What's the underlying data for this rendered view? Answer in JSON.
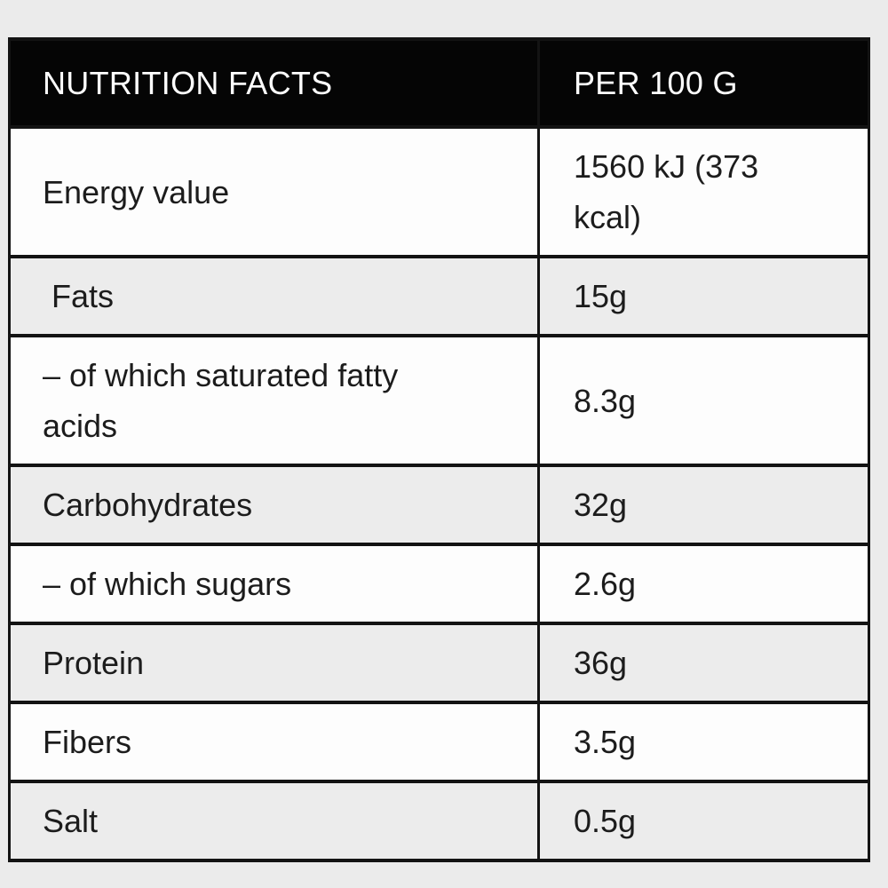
{
  "table": {
    "header": {
      "label": "NUTRITION FACTS",
      "value": "PER 100 G"
    },
    "rows": [
      {
        "label": "Energy value",
        "value": "1560 kJ (373 kcal)"
      },
      {
        "label": " Fats",
        "value": "15g"
      },
      {
        "label": "– of which saturated fatty acids",
        "value": "8.3g"
      },
      {
        "label": "Carbohydrates",
        "value": "32g"
      },
      {
        "label": "– of which sugars",
        "value": "2.6g"
      },
      {
        "label": "Protein",
        "value": "36g"
      },
      {
        "label": "Fibers",
        "value": "3.5g"
      },
      {
        "label": "Salt",
        "value": "0.5g"
      }
    ],
    "colors": {
      "header_bg": "#050505",
      "header_text": "#ffffff",
      "row_plain": "#fdfdfd",
      "row_shaded": "#ececec",
      "border": "#131313",
      "text": "#1c1c1c",
      "page_bg": "#ebebeb"
    }
  }
}
